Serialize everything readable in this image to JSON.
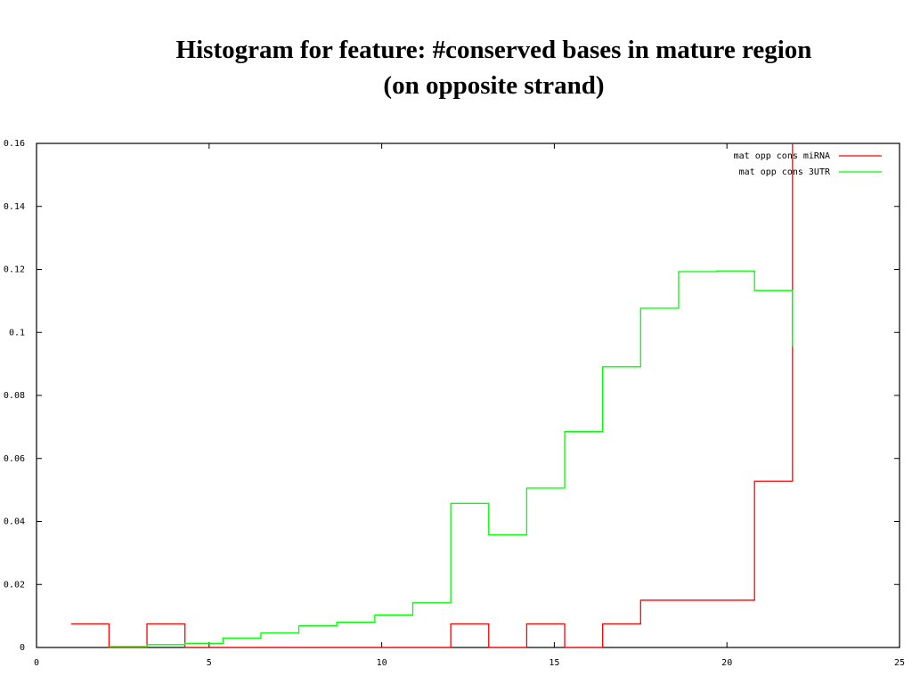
{
  "chart_data": {
    "type": "line",
    "step": true,
    "title": "Histogram for feature: #conserved bases in mature region",
    "subtitle": "(on opposite strand)",
    "xlim": [
      0,
      25
    ],
    "ylim": [
      0,
      0.16
    ],
    "xticks": [
      "0",
      "5",
      "10",
      "15",
      "20",
      "25"
    ],
    "yticks": [
      "0",
      "0.02",
      "0.04",
      "0.06",
      "0.08",
      "0.1",
      "0.12",
      "0.14",
      "0.16"
    ],
    "xtick_values": [
      0,
      5,
      10,
      15,
      20,
      25
    ],
    "ytick_values": [
      0,
      0.02,
      0.04,
      0.06,
      0.08,
      0.1,
      0.12,
      0.14,
      0.16
    ],
    "legend_position": "top-right",
    "grid": false,
    "series": [
      {
        "name": "mat opp cons miRNA",
        "color": "#ff0000",
        "x": [
          1.0,
          2.1,
          3.2,
          4.3,
          5.4,
          6.5,
          7.6,
          8.7,
          9.8,
          10.9,
          12.0,
          13.1,
          14.2,
          15.3,
          16.4,
          17.5,
          18.6,
          19.7,
          20.8,
          21.9
        ],
        "y": [
          0.0075,
          0,
          0.0075,
          0,
          0,
          0,
          0,
          0,
          0,
          0,
          0.0075,
          0,
          0.0075,
          0,
          0.0075,
          0.015,
          0.015,
          0.015,
          0.0528,
          0.16
        ],
        "end_y": 0.095
      },
      {
        "name": "mat opp cons 3UTR",
        "color": "#00ff00",
        "x": [
          2.1,
          3.2,
          4.3,
          5.4,
          6.5,
          7.6,
          8.7,
          9.8,
          10.9,
          12.0,
          13.1,
          14.2,
          15.3,
          16.4,
          17.5,
          18.6,
          19.7,
          20.8,
          21.9
        ],
        "y": [
          0.0003,
          0.0009,
          0.0013,
          0.003,
          0.0046,
          0.0069,
          0.008,
          0.0103,
          0.0142,
          0.0457,
          0.0358,
          0.0506,
          0.0685,
          0.0891,
          0.1077,
          0.1193,
          0.1195,
          0.1133,
          0.0955
        ],
        "end_y": 0.0955
      }
    ]
  }
}
